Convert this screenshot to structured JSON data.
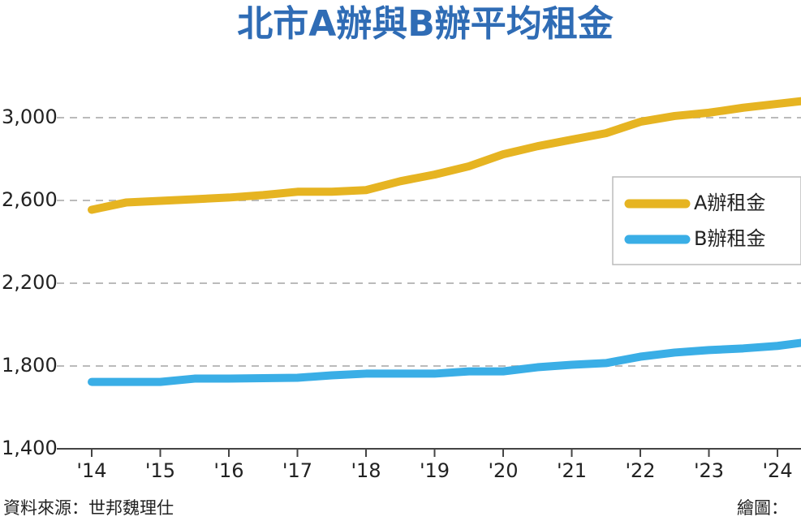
{
  "chart_data": {
    "type": "line",
    "title": "北市A辦與B辦平均租金",
    "source": "資料來源：世邦魏理仕",
    "credit": "繪圖：",
    "x": [
      2014,
      2014.5,
      2015,
      2015.5,
      2016,
      2016.5,
      2017,
      2017.5,
      2018,
      2018.5,
      2019,
      2019.5,
      2020,
      2020.5,
      2021,
      2021.5,
      2022,
      2022.5,
      2023,
      2023.5,
      2024,
      2024.35
    ],
    "series": [
      {
        "name": "A辦租金",
        "color": "#e6b422",
        "values": [
          2555,
          2590,
          2598,
          2606,
          2614,
          2626,
          2642,
          2642,
          2650,
          2693,
          2725,
          2765,
          2823,
          2862,
          2894,
          2925,
          2980,
          3008,
          3024,
          3048,
          3067,
          3080
        ]
      },
      {
        "name": "B辦租金",
        "color": "#3aaee6",
        "values": [
          1723,
          1723,
          1723,
          1739,
          1739,
          1741,
          1743,
          1755,
          1763,
          1763,
          1763,
          1774,
          1774,
          1794,
          1806,
          1814,
          1845,
          1865,
          1877,
          1885,
          1897,
          1912
        ]
      }
    ],
    "xlim": [
      2014,
      2024.35
    ],
    "xticks": [
      {
        "value": 2014,
        "label": "'14"
      },
      {
        "value": 2015,
        "label": "'15"
      },
      {
        "value": 2016,
        "label": "'16"
      },
      {
        "value": 2017,
        "label": "'17"
      },
      {
        "value": 2018,
        "label": "'18"
      },
      {
        "value": 2019,
        "label": "'19"
      },
      {
        "value": 2020,
        "label": "'20"
      },
      {
        "value": 2021,
        "label": "'21"
      },
      {
        "value": 2022,
        "label": "'22"
      },
      {
        "value": 2023,
        "label": "'23"
      },
      {
        "value": 2024,
        "label": "'24"
      }
    ],
    "ylim": [
      1400,
      3200
    ],
    "yticks": [
      {
        "value": 1400,
        "label": "1,400"
      },
      {
        "value": 1800,
        "label": "1,800"
      },
      {
        "value": 2200,
        "label": "2,200"
      },
      {
        "value": 2600,
        "label": "2,600"
      },
      {
        "value": 3000,
        "label": "3,000"
      }
    ],
    "grid": true,
    "legend": "right"
  }
}
